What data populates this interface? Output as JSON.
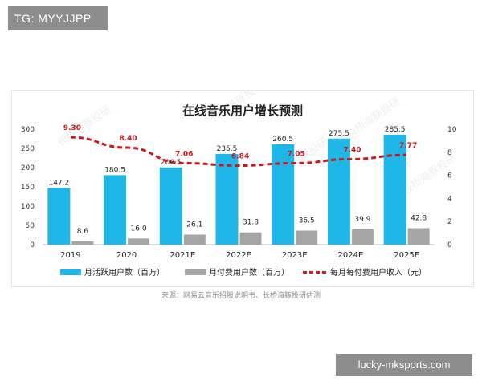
{
  "top_badge": {
    "text": "TG: MYYJJPP"
  },
  "bottom_badge": {
    "text": "lucky-mksports.com"
  },
  "source_note": "来源：网易云音乐招股说明书、长桥海豚投研估测",
  "watermark_text": "长桥海豚投研",
  "chart_data": {
    "type": "bar",
    "title": "在线音乐用户增长预测",
    "categories": [
      "2019",
      "2020",
      "2021E",
      "2022E",
      "2023E",
      "2024E",
      "2025E"
    ],
    "ylim_left": [
      0,
      300
    ],
    "left_ticks": [
      "0",
      "50",
      "100",
      "150",
      "200",
      "250",
      "300"
    ],
    "ylim_right": [
      0,
      10
    ],
    "right_ticks": [
      "0",
      "2",
      "4",
      "6",
      "8",
      "10"
    ],
    "series": [
      {
        "name": "月活跃用户数（百万）",
        "kind": "bar",
        "axis": "left",
        "color": "#1fb6e8",
        "values": [
          147.2,
          180.5,
          200.5,
          235.5,
          260.5,
          275.5,
          285.5
        ]
      },
      {
        "name": "月付费用户数（百万）",
        "kind": "bar",
        "axis": "left",
        "color": "#a5a5a5",
        "values": [
          8.6,
          16.0,
          26.1,
          31.8,
          36.5,
          39.9,
          42.8
        ]
      },
      {
        "name": "每月每付费用户收入（元）",
        "kind": "line",
        "axis": "right",
        "color": "#c8191f",
        "style": "dashed",
        "values": [
          9.3,
          8.4,
          7.06,
          6.84,
          7.05,
          7.4,
          7.77
        ]
      }
    ],
    "bar_labels": {
      "mau": [
        "147.2",
        "180.5",
        "200.5",
        "235.5",
        "260.5",
        "275.5",
        "285.5"
      ],
      "paying": [
        "8.6",
        "16.0",
        "26.1",
        "31.8",
        "36.5",
        "39.9",
        "42.8"
      ],
      "arppu": [
        "9.30",
        "8.40",
        "7.06",
        "6.84",
        "7.05",
        "7.40",
        "7.77"
      ]
    },
    "legend_position": "bottom",
    "grid": false
  }
}
